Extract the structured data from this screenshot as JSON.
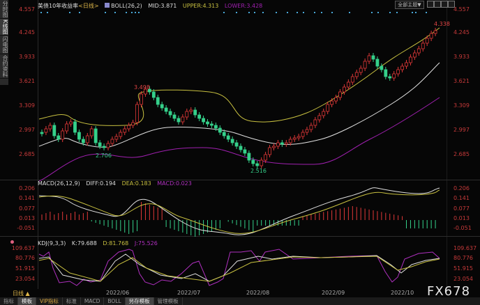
{
  "sidebar": {
    "tabs": [
      {
        "label": "分时图"
      },
      {
        "label": "K线图",
        "active": true
      },
      {
        "label": "闪电图"
      },
      {
        "label": "合约资料"
      }
    ]
  },
  "header": {
    "instrument": "美债10年收益率",
    "period_tag": "<日线>",
    "indicator": "BOLL(26,2)",
    "mid": "MID:3.871",
    "upper": "UPPER:4.313",
    "lower": "LOWER:3.428",
    "topic_button": "全部主题▼"
  },
  "price_axis": [
    "4.557",
    "4.245",
    "3.933",
    "3.621",
    "3.309",
    "2.997",
    "2.685"
  ],
  "annotations": {
    "high1": "3.498",
    "low1": "2.706",
    "low2": "2.516",
    "high2": "4.338"
  },
  "macd": {
    "title": "MACD(26,12,9)",
    "diff": "DIFF:0.194",
    "dea": "DEA:0.183",
    "macd": "MACD:0.023",
    "axis": [
      "0.206",
      "0.141",
      "0.077",
      "0.013",
      "-0.051"
    ]
  },
  "kdj": {
    "title": "KDJ(9,3,3)",
    "k": "K:79.688",
    "d": "D:81.768",
    "j": "J:75.526",
    "axis": [
      "109.637",
      "80.776",
      "51.915",
      "23.054"
    ]
  },
  "x_axis": [
    "2022/06",
    "2022/07",
    "2022/08",
    "2022/09",
    "2022/10"
  ],
  "period_label": "日线 ▲",
  "bottom_tabs": [
    {
      "label": "指标"
    },
    {
      "label": "模板",
      "selected": true
    },
    {
      "label": "VIP指标",
      "vip": true
    },
    {
      "label": "标准"
    },
    {
      "label": "MACD"
    },
    {
      "label": "BOLL"
    },
    {
      "label": "另存模板",
      "selected": true
    },
    {
      "label": "管理模板"
    }
  ],
  "watermark": "FX678",
  "colors": {
    "up": "#e03838",
    "down": "#35d08a",
    "upper": "#c8c040",
    "mid": "#e0e0e0",
    "lower": "#a020b0",
    "axis": "#c83a3a"
  }
}
